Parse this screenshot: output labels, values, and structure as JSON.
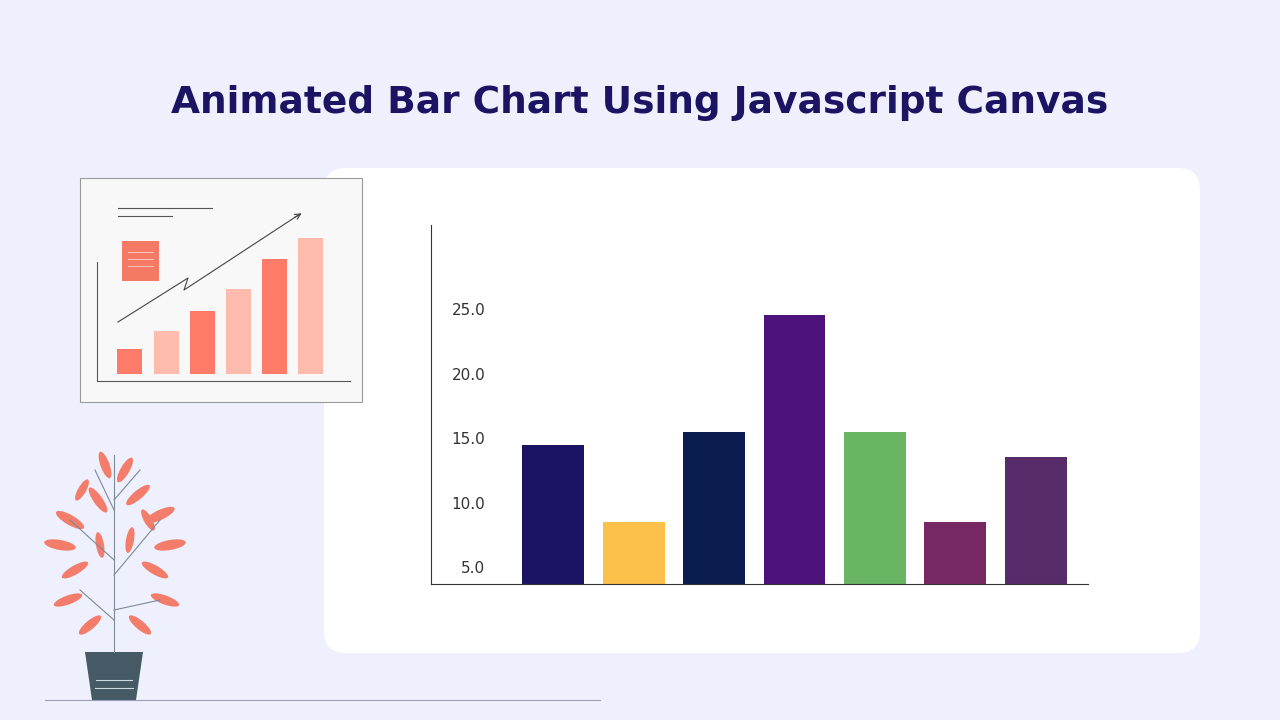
{
  "chart_data": {
    "type": "bar",
    "title": "Animated Bar Chart Using Javascript Canvas",
    "categories": [
      null,
      null,
      null,
      null,
      null,
      null,
      null
    ],
    "values": [
      14.5,
      8.5,
      15.5,
      24.5,
      15.5,
      8.5,
      13.5
    ],
    "colors": [
      "#1b1464",
      "#fbc14a",
      "#0b1c4f",
      "#4c137a",
      "#6ab562",
      "#772863",
      "#582b6a"
    ],
    "ylim": [
      3.7,
      31.5
    ],
    "yticks": [
      {
        "value": 5,
        "label": "5.0"
      },
      {
        "value": 10,
        "label": "10.0"
      },
      {
        "value": 15,
        "label": "15.0"
      },
      {
        "value": 20,
        "label": "20.0"
      },
      {
        "value": 25,
        "label": "25.0"
      }
    ],
    "tick_labels": "y",
    "grid": false
  }
}
